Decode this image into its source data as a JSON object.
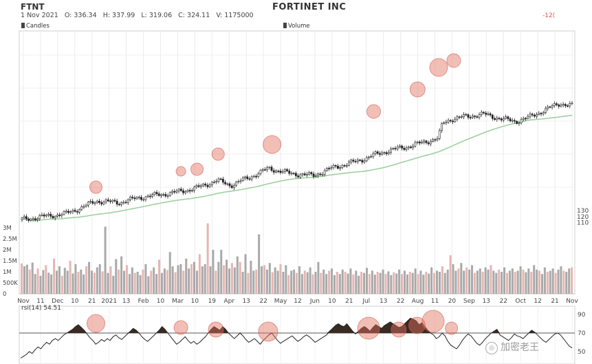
{
  "header": {
    "ticker": "FTNT",
    "company": "FORTINET INC",
    "quote": "1 Nov 2021   O: 336.34   H: 337.99   L: 319.06   C: 324.11   V: 1175000",
    "corner_label": "-12("
  },
  "legend": {
    "candles": "Candles",
    "volume": "Volume"
  },
  "rsi_label": "rsi(14) 54.51",
  "watermark": "加密老王",
  "chart_data": [
    {
      "type": "candlestick",
      "name": "Candles",
      "y_ticks": [
        {
          "value": 130,
          "label": "130"
        },
        {
          "value": 120,
          "label": "120"
        },
        {
          "value": 110,
          "label": "110"
        }
      ],
      "x_labels": [
        "Nov",
        "11",
        "Dec",
        "10",
        "21",
        "2021",
        "13",
        "Feb",
        "10",
        "Mar",
        "10",
        "19",
        "Apr",
        "13",
        "22",
        "May",
        "12",
        "Jun",
        "10",
        "21",
        "Jul",
        "13",
        "22",
        "Aug",
        "11",
        "20",
        "Sep",
        "13",
        "22",
        "Oct",
        "12",
        "21",
        "Nov"
      ],
      "moving_average_color": "#9fcf9f",
      "close_trend": [
        {
          "date": "2020-11-02",
          "close": 115
        },
        {
          "date": "2020-11-16",
          "close": 120
        },
        {
          "date": "2020-12-01",
          "close": 125
        },
        {
          "date": "2020-12-11",
          "close": 135
        },
        {
          "date": "2020-12-21",
          "close": 146
        },
        {
          "date": "2021-01-04",
          "close": 143
        },
        {
          "date": "2021-01-19",
          "close": 152
        },
        {
          "date": "2021-02-10",
          "close": 160
        },
        {
          "date": "2021-02-24",
          "close": 167
        },
        {
          "date": "2021-03-10",
          "close": 180
        },
        {
          "date": "2021-03-19",
          "close": 172
        },
        {
          "date": "2021-04-01",
          "close": 186
        },
        {
          "date": "2021-04-13",
          "close": 200
        },
        {
          "date": "2021-04-26",
          "close": 192
        },
        {
          "date": "2021-05-12",
          "close": 188
        },
        {
          "date": "2021-05-26",
          "close": 202
        },
        {
          "date": "2021-06-10",
          "close": 212
        },
        {
          "date": "2021-06-21",
          "close": 222
        },
        {
          "date": "2021-07-01",
          "close": 230
        },
        {
          "date": "2021-07-13",
          "close": 236
        },
        {
          "date": "2021-07-26",
          "close": 245
        },
        {
          "date": "2021-08-02",
          "close": 250
        },
        {
          "date": "2021-08-05",
          "close": 275
        },
        {
          "date": "2021-08-11",
          "close": 282
        },
        {
          "date": "2021-08-20",
          "close": 286
        },
        {
          "date": "2021-09-01",
          "close": 290
        },
        {
          "date": "2021-09-13",
          "close": 282
        },
        {
          "date": "2021-09-22",
          "close": 278
        },
        {
          "date": "2021-10-01",
          "close": 285
        },
        {
          "date": "2021-10-12",
          "close": 298
        },
        {
          "date": "2021-10-21",
          "close": 308
        },
        {
          "date": "2021-10-29",
          "close": 304
        }
      ]
    },
    {
      "type": "bar",
      "name": "Volume",
      "y_ticks": [
        {
          "value": 3000000,
          "label": "3M"
        },
        {
          "value": 2500000,
          "label": "2.5M"
        },
        {
          "value": 2000000,
          "label": "2M"
        },
        {
          "value": 1500000,
          "label": "1.5M"
        },
        {
          "value": 1000000,
          "label": "1M"
        },
        {
          "value": 500000,
          "label": "500K"
        },
        {
          "value": 0,
          "label": "0"
        }
      ],
      "ylim": [
        0,
        3300000
      ],
      "values": [
        1380000,
        1250000,
        1320000,
        1100000,
        1420000,
        900000,
        1150000,
        820000,
        1080000,
        1300000,
        960000,
        880000,
        1600000,
        1050000,
        1250000,
        820000,
        1180000,
        1050000,
        1500000,
        920000,
        1350000,
        1000000,
        1100000,
        880000,
        1250000,
        1450000,
        1050000,
        960000,
        1200000,
        1350000,
        1020000,
        3050000,
        950000,
        1250000,
        820000,
        1580000,
        1100000,
        1700000,
        1050000,
        1300000,
        900000,
        1200000,
        950000,
        1000000,
        850000,
        1100000,
        1350000,
        800000,
        1050000,
        1200000,
        900000,
        1550000,
        950000,
        1150000,
        1080000,
        1900000,
        1250000,
        980000,
        1300000,
        1350000,
        1050000,
        1600000,
        1150000,
        1350000,
        1450000,
        1050000,
        1800000,
        1250000,
        1350000,
        3200000,
        1250000,
        2000000,
        1050000,
        1450000,
        2000000,
        1300000,
        1550000,
        1150000,
        1400000,
        1200000,
        1700000,
        1450000,
        1000000,
        1800000,
        950000,
        1500000,
        1050000,
        1100000,
        2700000,
        1250000,
        1300000,
        1100000,
        1400000,
        980000,
        1200000,
        1050000,
        1350000,
        1000000,
        1300000,
        850000,
        1050000,
        1100000,
        950000,
        1250000,
        900000,
        1050000,
        980000,
        1200000,
        880000,
        1000000,
        1450000,
        950000,
        1100000,
        900000,
        1050000,
        1150000,
        850000,
        1000000,
        900000,
        1100000,
        1000000,
        920000,
        1150000,
        880000,
        1050000,
        820000,
        1000000,
        950000,
        1180000,
        900000,
        1050000,
        870000,
        1000000,
        950000,
        1100000,
        900000,
        1020000,
        850000,
        980000,
        920000,
        1100000,
        900000,
        1050000,
        880000,
        1000000,
        950000,
        1150000,
        900000,
        1050000,
        870000,
        1000000,
        920000,
        1200000,
        950000,
        1050000,
        1000000,
        1250000,
        950000,
        1100000,
        1750000,
        1350000,
        1050000,
        1150000,
        1400000,
        1050000,
        1200000,
        1100000,
        1300000,
        950000,
        1050000,
        1150000,
        1000000,
        1200000,
        1100000,
        1300000,
        1050000,
        950000,
        1100000,
        1000000,
        1200000,
        950000,
        1050000,
        1150000,
        1000000,
        1050000,
        1250000,
        1100000,
        980000,
        1150000,
        1000000,
        1300000,
        1100000,
        1050000,
        900000,
        1200000,
        1000000,
        1050000,
        1150000,
        950000,
        1100000,
        1250000,
        1050000,
        1000000,
        1150000,
        1200000
      ]
    },
    {
      "type": "line",
      "name": "rsi(14) 54.51",
      "y_ticks": [
        {
          "value": 90,
          "label": "90"
        },
        {
          "value": 70,
          "label": "70"
        },
        {
          "value": 50,
          "label": "50"
        }
      ],
      "ylim": [
        40,
        100
      ],
      "reference_line": 70,
      "values": [
        43,
        45,
        47,
        50,
        48,
        52,
        55,
        53,
        57,
        60,
        58,
        62,
        64,
        62,
        65,
        68,
        70,
        72,
        74,
        77,
        79,
        76,
        73,
        69,
        65,
        62,
        58,
        60,
        63,
        61,
        64,
        62,
        66,
        68,
        65,
        63,
        66,
        69,
        72,
        75,
        73,
        70,
        66,
        63,
        61,
        64,
        67,
        70,
        73,
        77,
        74,
        70,
        66,
        62,
        58,
        60,
        63,
        66,
        62,
        59,
        61,
        58,
        60,
        63,
        66,
        70,
        74,
        77,
        75,
        73,
        77,
        74,
        70,
        67,
        64,
        67,
        70,
        67,
        63,
        60,
        62,
        64,
        61,
        58,
        62,
        65,
        68,
        70,
        66,
        62,
        59,
        61,
        63,
        65,
        67,
        64,
        61,
        63,
        66,
        68,
        66,
        63,
        60,
        62,
        64,
        66,
        68,
        72,
        75,
        78,
        80,
        78,
        77,
        80,
        76,
        72,
        69,
        72,
        75,
        77,
        75,
        72,
        76,
        79,
        77,
        75,
        78,
        80,
        82,
        80,
        78,
        76,
        77,
        80,
        83,
        86,
        85,
        83,
        79,
        81,
        77,
        73,
        70,
        68,
        64,
        66,
        70,
        67,
        61,
        57,
        55,
        53,
        57,
        62,
        66,
        69,
        67,
        63,
        59,
        57,
        60,
        64,
        67,
        70,
        72,
        74,
        68,
        66,
        64,
        62,
        65,
        69,
        67,
        66,
        64,
        67,
        70,
        73,
        71,
        68,
        65,
        62,
        60,
        63,
        66,
        69,
        70,
        68,
        64,
        60,
        56,
        54
      ]
    }
  ]
}
